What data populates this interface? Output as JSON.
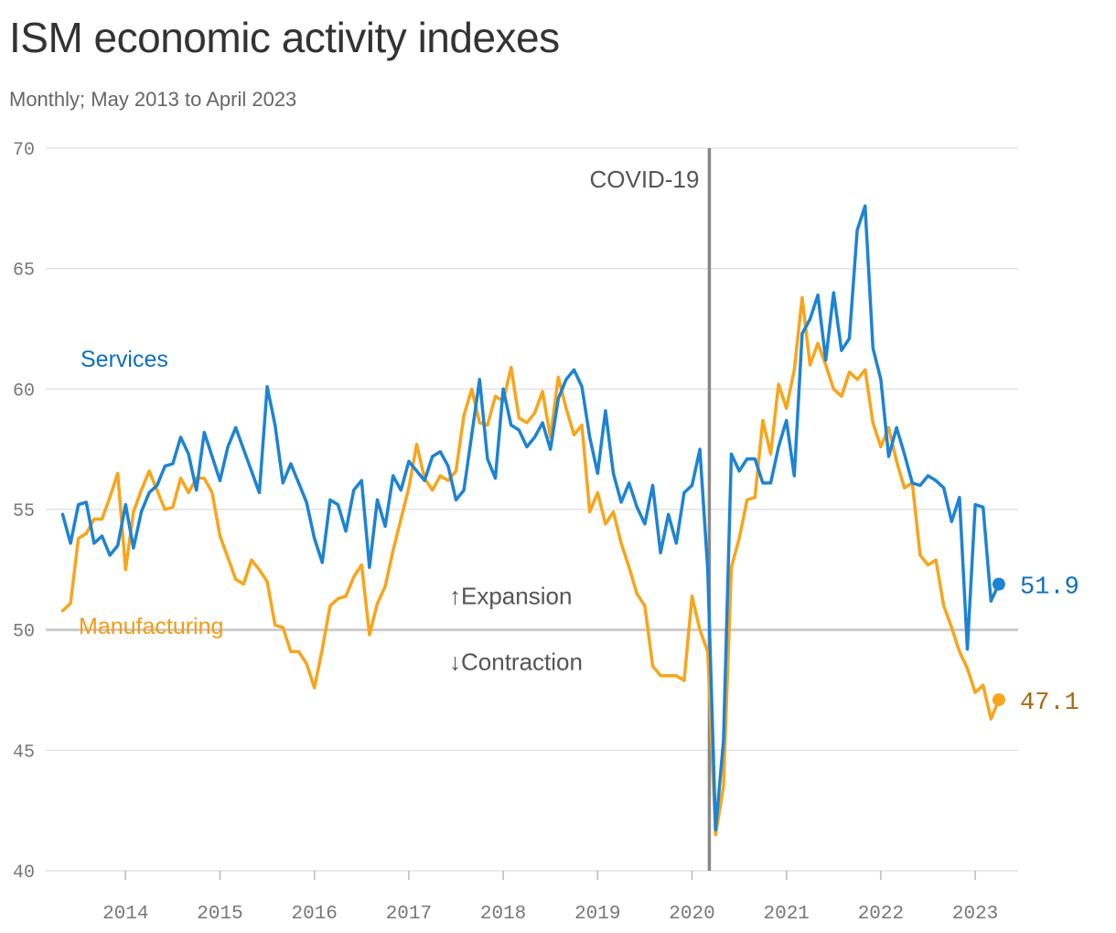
{
  "title": "ISM economic activity indexes",
  "subtitle": "Monthly; May 2013 to April 2023",
  "colors": {
    "services": "#1d83d4",
    "services_label": "#0c6ec0",
    "manufacturing": "#faa41a",
    "manufacturing_label": "#f39c12",
    "manufacturing_value": "#a8690f",
    "covid_line": "#888888",
    "grid": "#e3e3e3",
    "threshold": "#cccccc"
  },
  "annotations": {
    "covid": "COVID-19",
    "expansion": "↑Expansion",
    "contraction": "↓Contraction"
  },
  "chart_data": {
    "type": "line",
    "title": "ISM economic activity indexes",
    "subtitle": "Monthly; May 2013 to April 2023",
    "x_start": "2013-05",
    "x_end": "2023-04",
    "frequency": "monthly",
    "ylim": [
      40,
      70
    ],
    "yticks": [
      "40",
      "45",
      "50",
      "55",
      "60",
      "65",
      "70"
    ],
    "xticks": [
      "2014",
      "2015",
      "2016",
      "2017",
      "2018",
      "2019",
      "2020",
      "2021",
      "2022",
      "2023"
    ],
    "grid": true,
    "threshold": 50,
    "event_marker": {
      "date": "2020-03",
      "label": "COVID-19"
    },
    "series": [
      {
        "name": "Services",
        "color": "#1d83d4",
        "end_label": "51.9",
        "values": [
          54.8,
          53.6,
          55.2,
          55.3,
          53.6,
          53.9,
          53.1,
          53.5,
          55.2,
          53.4,
          54.9,
          55.7,
          56.0,
          56.8,
          56.9,
          58.0,
          57.3,
          55.8,
          58.2,
          57.2,
          56.2,
          57.6,
          58.4,
          57.5,
          56.6,
          55.7,
          60.1,
          58.5,
          56.1,
          56.9,
          56.1,
          55.3,
          53.8,
          52.8,
          55.4,
          55.2,
          54.1,
          55.8,
          56.2,
          52.6,
          55.4,
          54.3,
          56.4,
          55.8,
          57.0,
          56.6,
          56.2,
          57.2,
          57.4,
          56.8,
          55.4,
          55.8,
          58.1,
          60.4,
          57.1,
          56.3,
          60.0,
          58.5,
          58.3,
          57.6,
          58.0,
          58.6,
          57.5,
          59.6,
          60.4,
          60.8,
          60.1,
          58.0,
          56.5,
          59.1,
          56.5,
          55.3,
          56.1,
          55.1,
          54.4,
          56.0,
          53.2,
          54.8,
          53.6,
          55.7,
          56.0,
          57.5,
          52.5,
          41.7,
          45.4,
          57.3,
          56.6,
          57.1,
          57.1,
          56.1,
          56.1,
          57.6,
          58.7,
          56.4,
          62.3,
          62.9,
          63.9,
          61.2,
          64.0,
          61.6,
          62.1,
          66.6,
          67.6,
          61.7,
          60.4,
          57.2,
          58.4,
          57.3,
          56.1,
          56.0,
          56.4,
          56.2,
          55.9,
          54.5,
          55.5,
          49.2,
          55.2,
          55.1,
          51.2,
          51.9
        ]
      },
      {
        "name": "Manufacturing",
        "color": "#faa41a",
        "end_label": "47.1",
        "values": [
          50.8,
          51.1,
          53.8,
          54.0,
          54.6,
          54.6,
          55.5,
          56.5,
          52.5,
          54.9,
          55.8,
          56.6,
          55.8,
          55.0,
          55.1,
          56.3,
          55.7,
          56.3,
          56.3,
          55.7,
          53.9,
          53.0,
          52.1,
          51.9,
          52.9,
          52.5,
          52.0,
          50.2,
          50.1,
          49.1,
          49.1,
          48.6,
          47.6,
          49.2,
          51.0,
          51.3,
          51.4,
          52.2,
          52.7,
          49.8,
          51.1,
          51.8,
          53.3,
          54.6,
          55.9,
          57.7,
          56.3,
          55.8,
          56.4,
          56.2,
          56.6,
          58.9,
          60.0,
          58.6,
          58.5,
          59.7,
          59.5,
          60.9,
          58.8,
          58.6,
          59.0,
          59.9,
          58.0,
          60.5,
          59.2,
          58.1,
          58.5,
          54.9,
          55.7,
          54.4,
          54.9,
          53.6,
          52.6,
          51.5,
          51.0,
          48.5,
          48.1,
          48.1,
          48.1,
          47.9,
          51.4,
          50.0,
          49.1,
          41.5,
          43.5,
          52.6,
          53.8,
          55.4,
          55.5,
          58.7,
          57.3,
          60.2,
          59.2,
          60.8,
          63.8,
          61.0,
          61.9,
          61.0,
          60.0,
          59.7,
          60.7,
          60.4,
          60.8,
          58.6,
          57.6,
          58.4,
          57.0,
          55.9,
          56.1,
          53.1,
          52.7,
          52.9,
          51.0,
          50.1,
          49.1,
          48.4,
          47.4,
          47.7,
          46.3,
          47.1
        ]
      }
    ]
  }
}
